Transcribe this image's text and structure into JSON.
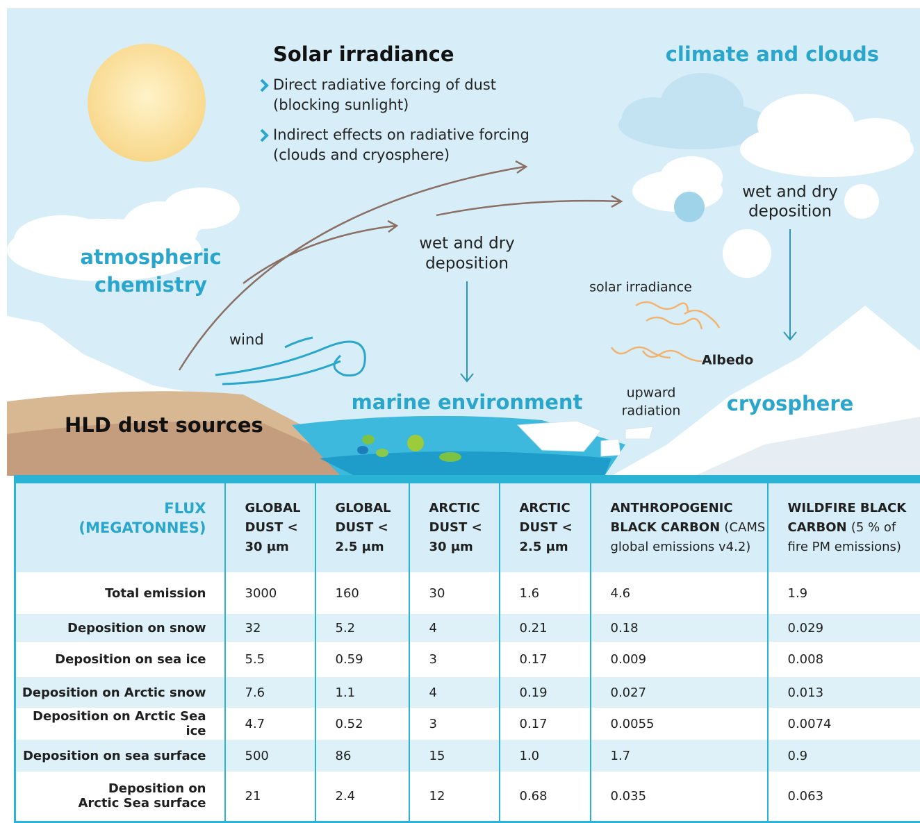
{
  "illustration": {
    "solar_irradiance": {
      "title": "Solar irradiance",
      "bullets": [
        [
          "Direct radiative forcing of dust",
          "(blocking sunlight)"
        ],
        [
          "Indirect effects on radiative forcing",
          "(clouds and cryosphere)"
        ]
      ]
    },
    "climate_and_clouds": "climate and clouds",
    "atmospheric_chemistry": [
      "atmospheric",
      "chemistry"
    ],
    "wind": "wind",
    "marine_deposition": [
      "wet and dry",
      "deposition"
    ],
    "cryosphere_deposition": [
      "wet and dry",
      "deposition"
    ],
    "solar_irradiance_label": "solar irradiance",
    "albedo": "Albedo",
    "upward_radiation": [
      "upward",
      "radiation"
    ],
    "marine_environment": "marine environment",
    "cryosphere": "cryosphere",
    "dust_sources": "HLD dust sources"
  },
  "table": {
    "corner": [
      "FLUX",
      "(MEGATONNES)"
    ],
    "columns": [
      {
        "title": "GLOBAL DUST < 30 μm"
      },
      {
        "title": "GLOBAL DUST < 2.5 μm"
      },
      {
        "title": "ARCTIC DUST < 30 μm"
      },
      {
        "title": "ARCTIC DUST < 2.5 μm"
      },
      {
        "title": "ANTHROPOGENIC BLACK CARBON",
        "note": "(CAMS global emissions v4.2)"
      },
      {
        "title": "WILDFIRE BLACK CARBON",
        "note": "(5 % of fire PM emissions)"
      }
    ],
    "rows": [
      {
        "label": [
          "Total emission"
        ],
        "cells": [
          "3000",
          "160",
          "30",
          "1.6",
          "4.6",
          "1.9"
        ]
      },
      {
        "label": [
          "Deposition on snow"
        ],
        "cells": [
          "32",
          "5.2",
          "4",
          "0.21",
          "0.18",
          "0.029"
        ]
      },
      {
        "label": [
          "Deposition on sea ice"
        ],
        "cells": [
          "5.5",
          "0.59",
          "3",
          "0.17",
          "0.009",
          "0.008"
        ]
      },
      {
        "label": [
          "Deposition on Arctic snow"
        ],
        "cells": [
          "7.6",
          "1.1",
          "4",
          "0.19",
          "0.027",
          "0.013"
        ]
      },
      {
        "label": [
          "Deposition on Arctic Sea ice"
        ],
        "cells": [
          "4.7",
          "0.52",
          "3",
          "0.17",
          "0.0055",
          "0.0074"
        ]
      },
      {
        "label": [
          "Deposition on sea surface"
        ],
        "cells": [
          "500",
          "86",
          "15",
          "1.0",
          "1.7",
          "0.9"
        ]
      },
      {
        "label": [
          "Deposition on",
          "Arctic Sea surface"
        ],
        "cells": [
          "21",
          "2.4",
          "12",
          "0.68",
          "0.035",
          "0.063"
        ]
      }
    ]
  }
}
